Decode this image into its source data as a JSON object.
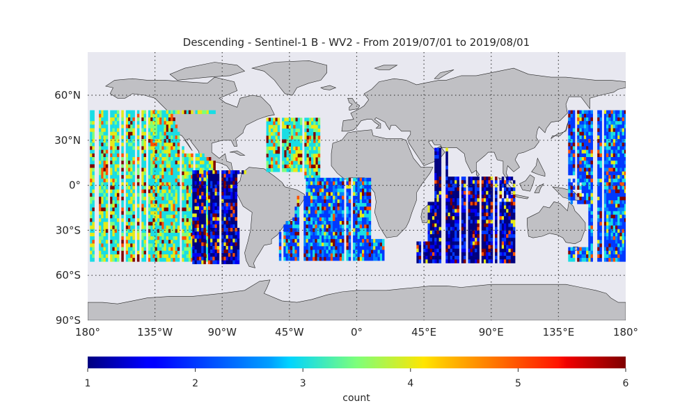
{
  "title": "Descending - Sentinel-1 B - WV2 - From 2019/07/01 to 2019/08/01",
  "map": {
    "projection": "plate-carree",
    "lon_range": [
      -180,
      180
    ],
    "lat_range": [
      -90,
      90
    ],
    "ocean_color": "#e8e8f0",
    "land_color": "#c0c0c4",
    "coastline_color": "#222222",
    "gridlines": "dotted",
    "lat_ticks": [
      {
        "value": 60,
        "label": "60°N"
      },
      {
        "value": 30,
        "label": "30°N"
      },
      {
        "value": 0,
        "label": "0°"
      },
      {
        "value": -30,
        "label": "30°S"
      },
      {
        "value": -60,
        "label": "60°S"
      },
      {
        "value": -90,
        "label": "90°S"
      }
    ],
    "lon_ticks": [
      {
        "value": -180,
        "label": "180°"
      },
      {
        "value": -135,
        "label": "135°W"
      },
      {
        "value": -90,
        "label": "90°W"
      },
      {
        "value": -45,
        "label": "45°W"
      },
      {
        "value": 0,
        "label": "0°"
      },
      {
        "value": 45,
        "label": "45°E"
      },
      {
        "value": 90,
        "label": "90°E"
      },
      {
        "value": 135,
        "label": "135°E"
      },
      {
        "value": 180,
        "label": "180°"
      }
    ]
  },
  "chart_data": {
    "type": "heatmap",
    "title": "Descending - Sentinel-1 B - WV2 - From 2019/07/01 to 2019/08/01",
    "colormap": "jet",
    "value_range": [
      1,
      6
    ],
    "lat_extent": [
      -50,
      50
    ],
    "cell_size_deg": 1.5,
    "ocean_swaths": [
      {
        "basin": "East Pacific",
        "lon_range": [
          -180,
          -95
        ],
        "lat_range": [
          -50,
          50
        ],
        "dominant_count": 3
      },
      {
        "basin": "Southeast Pacific",
        "lon_range": [
          -110,
          -75
        ],
        "lat_range": [
          -50,
          10
        ],
        "dominant_count": 1
      },
      {
        "basin": "North Atlantic",
        "lon_range": [
          -62,
          -23
        ],
        "lat_range": [
          5,
          45
        ],
        "dominant_count": 3
      },
      {
        "basin": "South Atlantic",
        "lon_range": [
          -52,
          18
        ],
        "lat_range": [
          -50,
          5
        ],
        "dominant_count": 2
      },
      {
        "basin": "Indian Ocean",
        "lon_range": [
          40,
          105
        ],
        "lat_range": [
          -50,
          25
        ],
        "dominant_count": 1
      },
      {
        "basin": "West Pacific",
        "lon_range": [
          140,
          180
        ],
        "lat_range": [
          -50,
          50
        ],
        "dominant_count": 2
      }
    ],
    "colorbar": {
      "ticks": [
        1,
        2,
        3,
        4,
        5,
        6
      ],
      "label": "count",
      "orientation": "horizontal"
    }
  }
}
